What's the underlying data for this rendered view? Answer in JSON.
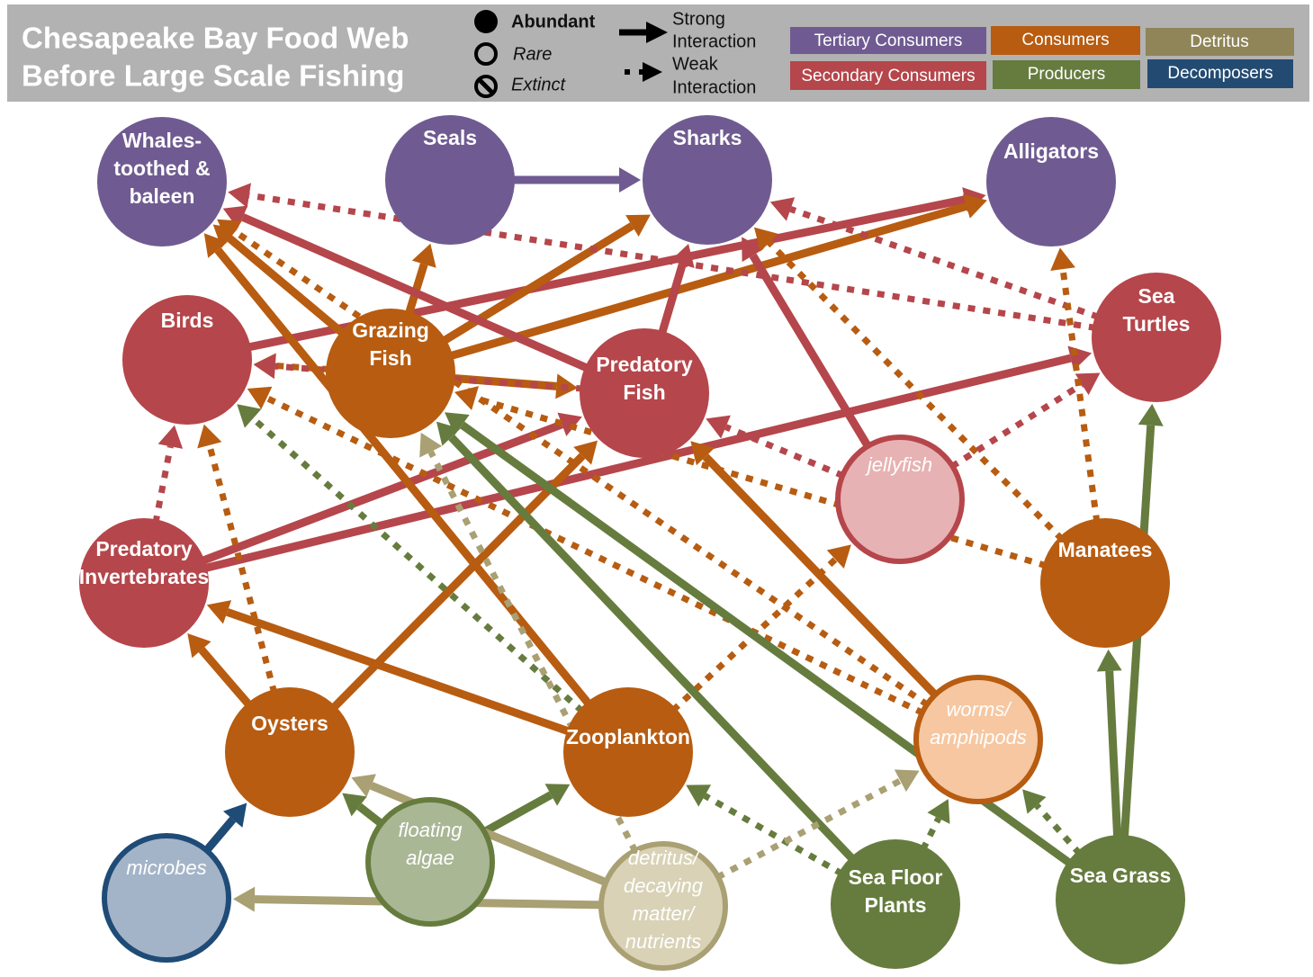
{
  "header": {
    "title": [
      "Chesapeake Bay Food Web",
      "Before Large Scale Fishing"
    ]
  },
  "legend": {
    "abundance": [
      "Abundant",
      "Rare",
      "Extinct"
    ],
    "interaction": [
      [
        "Strong",
        "Interaction"
      ],
      [
        "Weak",
        "Interaction"
      ]
    ],
    "groups": [
      "Tertiary Consumers",
      "Consumers",
      "Detritus",
      "Secondary Consumers",
      "Producers",
      "Decomposers"
    ]
  },
  "nodes": [
    {
      "label": [
        "Whales-",
        "toothed &",
        "baleen"
      ]
    },
    {
      "label": [
        "Seals"
      ]
    },
    {
      "label": [
        "Sharks"
      ]
    },
    {
      "label": [
        "Alligators"
      ]
    },
    {
      "label": [
        "Birds"
      ]
    },
    {
      "label": [
        "Grazing",
        "Fish"
      ]
    },
    {
      "label": [
        "Predatory",
        "Fish"
      ]
    },
    {
      "label": [
        "Sea",
        "Turtles"
      ]
    },
    {
      "label": [
        "jellyfish"
      ]
    },
    {
      "label": [
        "Manatees"
      ]
    },
    {
      "label": [
        "Predatory",
        "Invertebrates"
      ]
    },
    {
      "label": [
        "Oysters"
      ]
    },
    {
      "label": [
        "Zooplankton"
      ]
    },
    {
      "label": [
        "worms/",
        "amphipods"
      ]
    },
    {
      "label": [
        "microbes"
      ]
    },
    {
      "label": [
        "floating",
        "algae"
      ]
    },
    {
      "label": [
        "detritus/",
        "decaying",
        "matter/",
        "nutrients"
      ]
    },
    {
      "label": [
        "Sea Floor",
        "Plants"
      ]
    },
    {
      "label": [
        "Sea Grass"
      ]
    }
  ]
}
